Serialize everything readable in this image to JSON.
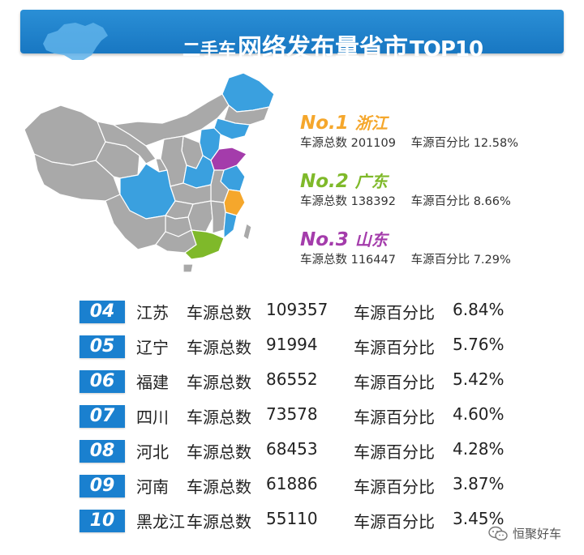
{
  "header": {
    "title_part1": "二手车",
    "title_part2": "网络发布量省市",
    "title_part3": "TOP10",
    "bg_color": "#1a7fcd"
  },
  "colors": {
    "map_gray": "#a9a9a9",
    "map_blue": "#3aa0df",
    "first": "#f5a72c",
    "second": "#7fb92a",
    "third": "#a43cab",
    "rank_box": "#1a80cf"
  },
  "top3": [
    {
      "rank": "No.1",
      "province": "浙江",
      "label1": "车源总数",
      "total": "201109",
      "label2": "车源百分比",
      "percent": "12.58%"
    },
    {
      "rank": "No.2",
      "province": "广东",
      "label1": "车源总数",
      "total": "138392",
      "label2": "车源百分比",
      "percent": "8.66%"
    },
    {
      "rank": "No.3",
      "province": "山东",
      "label1": "车源总数",
      "total": "116447",
      "label2": "车源百分比",
      "percent": "7.29%"
    }
  ],
  "rows": [
    {
      "rank": "04",
      "province": "江苏",
      "label1": "车源总数",
      "total": "109357",
      "label2": "车源百分比",
      "percent": "6.84%"
    },
    {
      "rank": "05",
      "province": "辽宁",
      "label1": "车源总数",
      "total": "91994",
      "label2": "车源百分比",
      "percent": "5.76%"
    },
    {
      "rank": "06",
      "province": "福建",
      "label1": "车源总数",
      "total": "86552",
      "label2": "车源百分比",
      "percent": "5.42%"
    },
    {
      "rank": "07",
      "province": "四川",
      "label1": "车源总数",
      "total": "73578",
      "label2": "车源百分比",
      "percent": "4.60%"
    },
    {
      "rank": "08",
      "province": "河北",
      "label1": "车源总数",
      "total": "68453",
      "label2": "车源百分比",
      "percent": "4.28%"
    },
    {
      "rank": "09",
      "province": "河南",
      "label1": "车源总数",
      "total": "61886",
      "label2": "车源百分比",
      "percent": "3.87%"
    },
    {
      "rank": "10",
      "province": "黑龙江",
      "label1": "车源总数",
      "total": "55110",
      "label2": "车源百分比",
      "percent": "3.45%"
    }
  ],
  "watermark": {
    "text": "恒聚好车",
    "icon": "wechat-icon"
  }
}
